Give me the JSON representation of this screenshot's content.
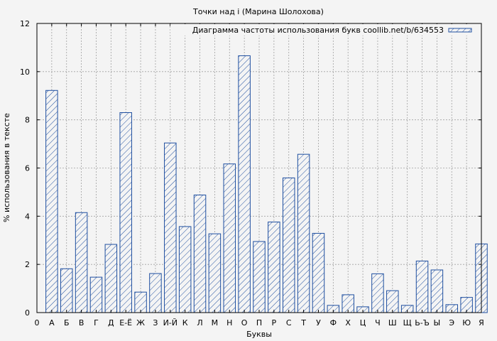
{
  "chart_data": {
    "type": "bar",
    "title": "Точки над i (Марина Шолохова)",
    "xlabel": "Буквы",
    "ylabel": "% использования в тексте",
    "categories": [
      "А",
      "Б",
      "В",
      "Г",
      "Д",
      "Е-Ё",
      "Ж",
      "З",
      "И-Й",
      "К",
      "Л",
      "М",
      "Н",
      "О",
      "П",
      "Р",
      "С",
      "Т",
      "У",
      "Ф",
      "Х",
      "Ц",
      "Ч",
      "Ш",
      "Щ",
      "Ь-Ъ",
      "Ы",
      "Э",
      "Ю",
      "Я"
    ],
    "x_tick_labels": [
      "0",
      "А",
      "Б",
      "В",
      "Г",
      "Д",
      "Е-Ё",
      "Ж",
      "З",
      "И-Й",
      "К",
      "Л",
      "М",
      "Н",
      "О",
      "П",
      "Р",
      "С",
      "Т",
      "У",
      "Ф",
      "Х",
      "Ц",
      "Ч",
      "Ш",
      "Щ",
      "Ь-Ъ",
      "Ы",
      "Э",
      "Ю",
      "Я"
    ],
    "series": [
      {
        "name": "Диаграмма частоты использования букв coollib.net/b/634553",
        "values": [
          9.22,
          1.82,
          4.15,
          1.47,
          2.83,
          8.3,
          0.85,
          1.62,
          7.04,
          3.57,
          4.88,
          3.27,
          6.17,
          10.66,
          2.95,
          3.76,
          5.59,
          6.57,
          3.29,
          0.3,
          0.74,
          0.24,
          1.61,
          0.91,
          0.3,
          2.14,
          1.77,
          0.33,
          0.63,
          2.85
        ]
      }
    ],
    "ylim": [
      0,
      12
    ],
    "yticks": [
      0,
      2,
      4,
      6,
      8,
      10,
      12
    ],
    "grid": true,
    "legend_position": "top-right",
    "colors": {
      "bar_stroke": "#1f4fa0",
      "background": "#f4f4f4",
      "grid": "#a0a0a0"
    }
  }
}
